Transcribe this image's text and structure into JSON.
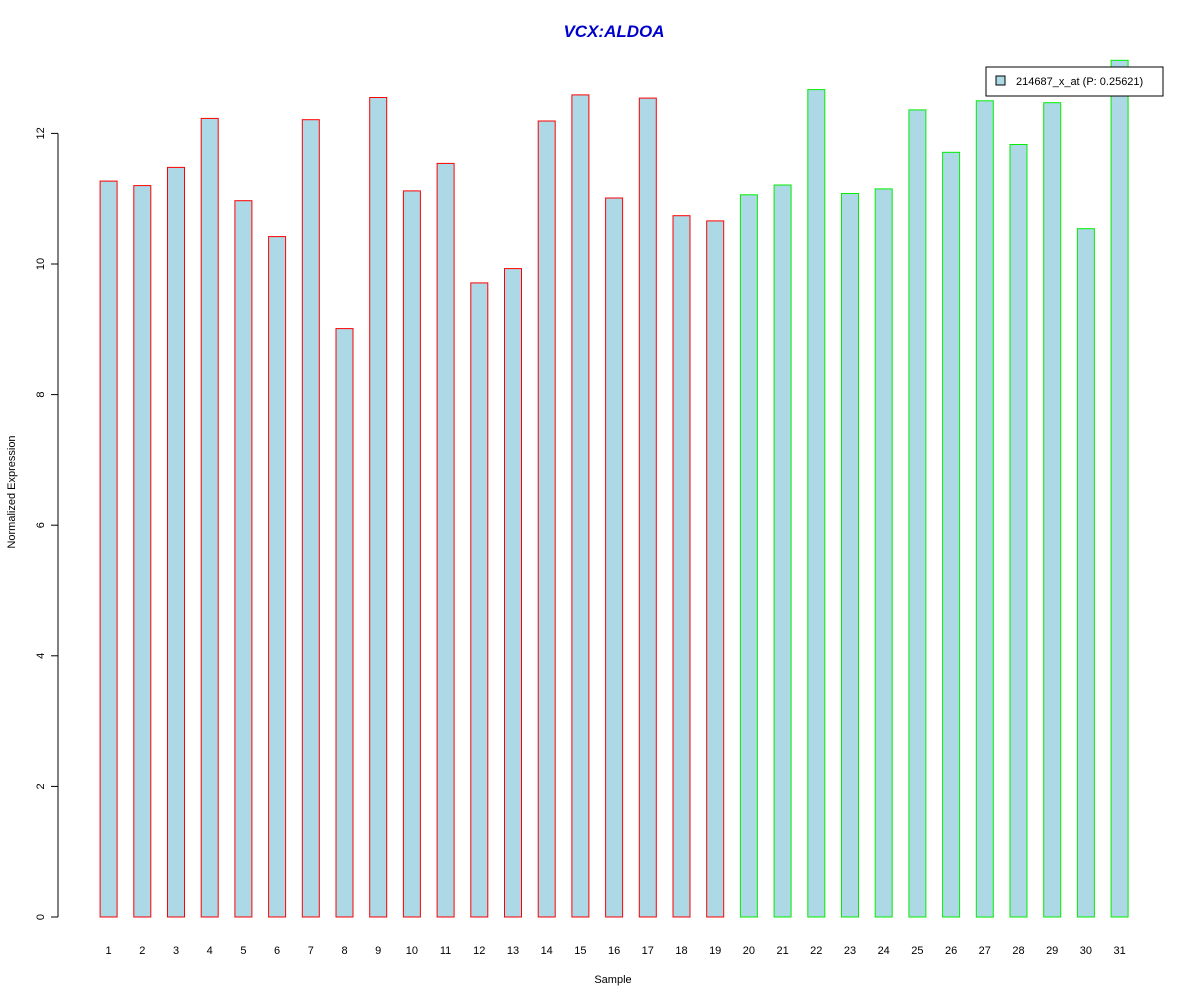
{
  "chart_data": {
    "type": "bar",
    "title": "VCX:ALDOA",
    "xlabel": "Sample",
    "ylabel": "Normalized Expression",
    "ylim": [
      0,
      13.2
    ],
    "yticks": [
      0,
      2,
      4,
      6,
      8,
      10,
      12
    ],
    "categories": [
      "1",
      "2",
      "3",
      "4",
      "5",
      "6",
      "7",
      "8",
      "9",
      "10",
      "11",
      "12",
      "13",
      "14",
      "15",
      "16",
      "17",
      "18",
      "19",
      "20",
      "21",
      "22",
      "23",
      "24",
      "25",
      "26",
      "27",
      "28",
      "29",
      "30",
      "31"
    ],
    "values": [
      11.27,
      11.2,
      11.48,
      12.23,
      10.97,
      10.42,
      12.21,
      9.01,
      12.55,
      11.12,
      11.54,
      9.71,
      9.93,
      12.19,
      12.59,
      11.01,
      12.54,
      10.74,
      10.66,
      11.06,
      11.21,
      12.67,
      11.08,
      11.15,
      12.36,
      11.71,
      12.5,
      11.83,
      12.47,
      10.54,
      13.12
    ],
    "group_border_colors": [
      "#FF0000",
      "#FF0000",
      "#FF0000",
      "#FF0000",
      "#FF0000",
      "#FF0000",
      "#FF0000",
      "#FF0000",
      "#FF0000",
      "#FF0000",
      "#FF0000",
      "#FF0000",
      "#FF0000",
      "#FF0000",
      "#FF0000",
      "#FF0000",
      "#FF0000",
      "#FF0000",
      "#FF0000",
      "#00EE00",
      "#00EE00",
      "#00EE00",
      "#00EE00",
      "#00EE00",
      "#00EE00",
      "#00EE00",
      "#00EE00",
      "#00EE00",
      "#00EE00",
      "#00EE00",
      "#00EE00"
    ],
    "bar_fill": "#ADD8E6",
    "title_color": "#0000CC",
    "legend": {
      "label": "214687_x_at (P: 0.25621)",
      "position": "top-right"
    },
    "grid": false
  }
}
